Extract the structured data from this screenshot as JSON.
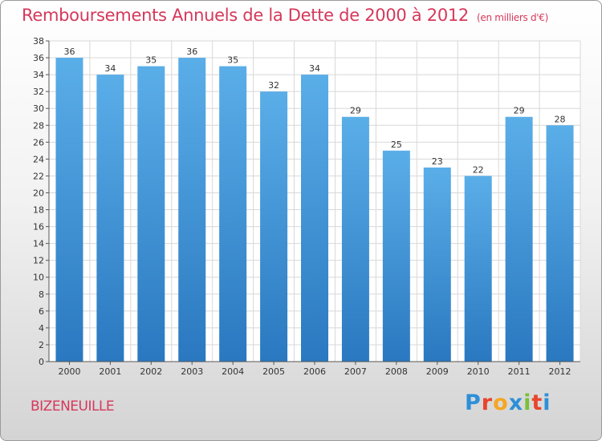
{
  "title": "Remboursements Annuels de la Dette de 2000 à 2012",
  "unit": "(en milliers d'€)",
  "city": "BIZENEUILLE",
  "logo": {
    "letters": [
      "P",
      "r",
      "o",
      "x",
      "i",
      "t",
      "i"
    ],
    "colors": [
      "#2e8fd8",
      "#e8452c",
      "#f5a623",
      "#2e8fd8",
      "#7bbf3a",
      "#e8452c",
      "#2e8fd8"
    ]
  },
  "colors": {
    "bar_top": "#5aaee8",
    "bar_bottom": "#2a78c0",
    "text_accent": "#d6385a"
  },
  "chart_data": {
    "type": "bar",
    "title": "Remboursements Annuels de la Dette de 2000 à 2012",
    "subtitle": "(en milliers d'€)",
    "categories": [
      "2000",
      "2001",
      "2002",
      "2003",
      "2004",
      "2005",
      "2006",
      "2007",
      "2008",
      "2009",
      "2010",
      "2011",
      "2012"
    ],
    "values": [
      36,
      34,
      35,
      36,
      35,
      32,
      34,
      29,
      25,
      23,
      22,
      29,
      28
    ],
    "ylim": [
      0,
      38
    ],
    "yticks": [
      0,
      2,
      4,
      6,
      8,
      10,
      12,
      14,
      16,
      18,
      20,
      22,
      24,
      26,
      28,
      30,
      32,
      34,
      36,
      38
    ],
    "grid": true,
    "data_labels": true
  }
}
